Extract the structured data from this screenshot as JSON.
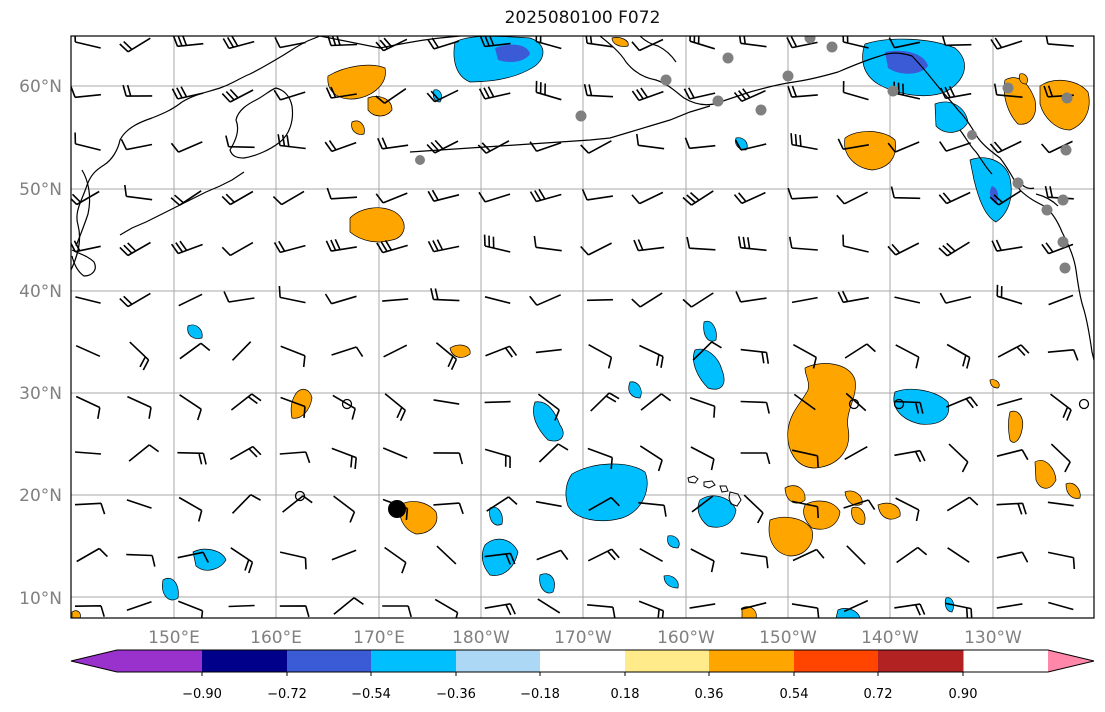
{
  "title": "2025080100 F072",
  "lat_labels": [
    "60°N",
    "50°N",
    "40°N",
    "30°N",
    "20°N",
    "10°N"
  ],
  "lon_labels": [
    "150°E",
    "160°E",
    "170°E",
    "180°W",
    "170°W",
    "160°W",
    "150°W",
    "140°W",
    "130°W"
  ],
  "colorbar": {
    "ticks": [
      "−0.90",
      "−0.72",
      "−0.54",
      "−0.36",
      "−0.18",
      "0.18",
      "0.36",
      "0.54",
      "0.72",
      "0.90"
    ],
    "colors": [
      "#9932cc",
      "#00008b",
      "#3b5bd6",
      "#00bfff",
      "#add8f5",
      "#ffffff",
      "#ffeb8a",
      "#ffa500",
      "#ff4500",
      "#b22222",
      "#ff88aa"
    ]
  },
  "colors": {
    "grid": "#a8a8a8",
    "coast": "#000000",
    "station": "#808080",
    "label": "#808080"
  }
}
